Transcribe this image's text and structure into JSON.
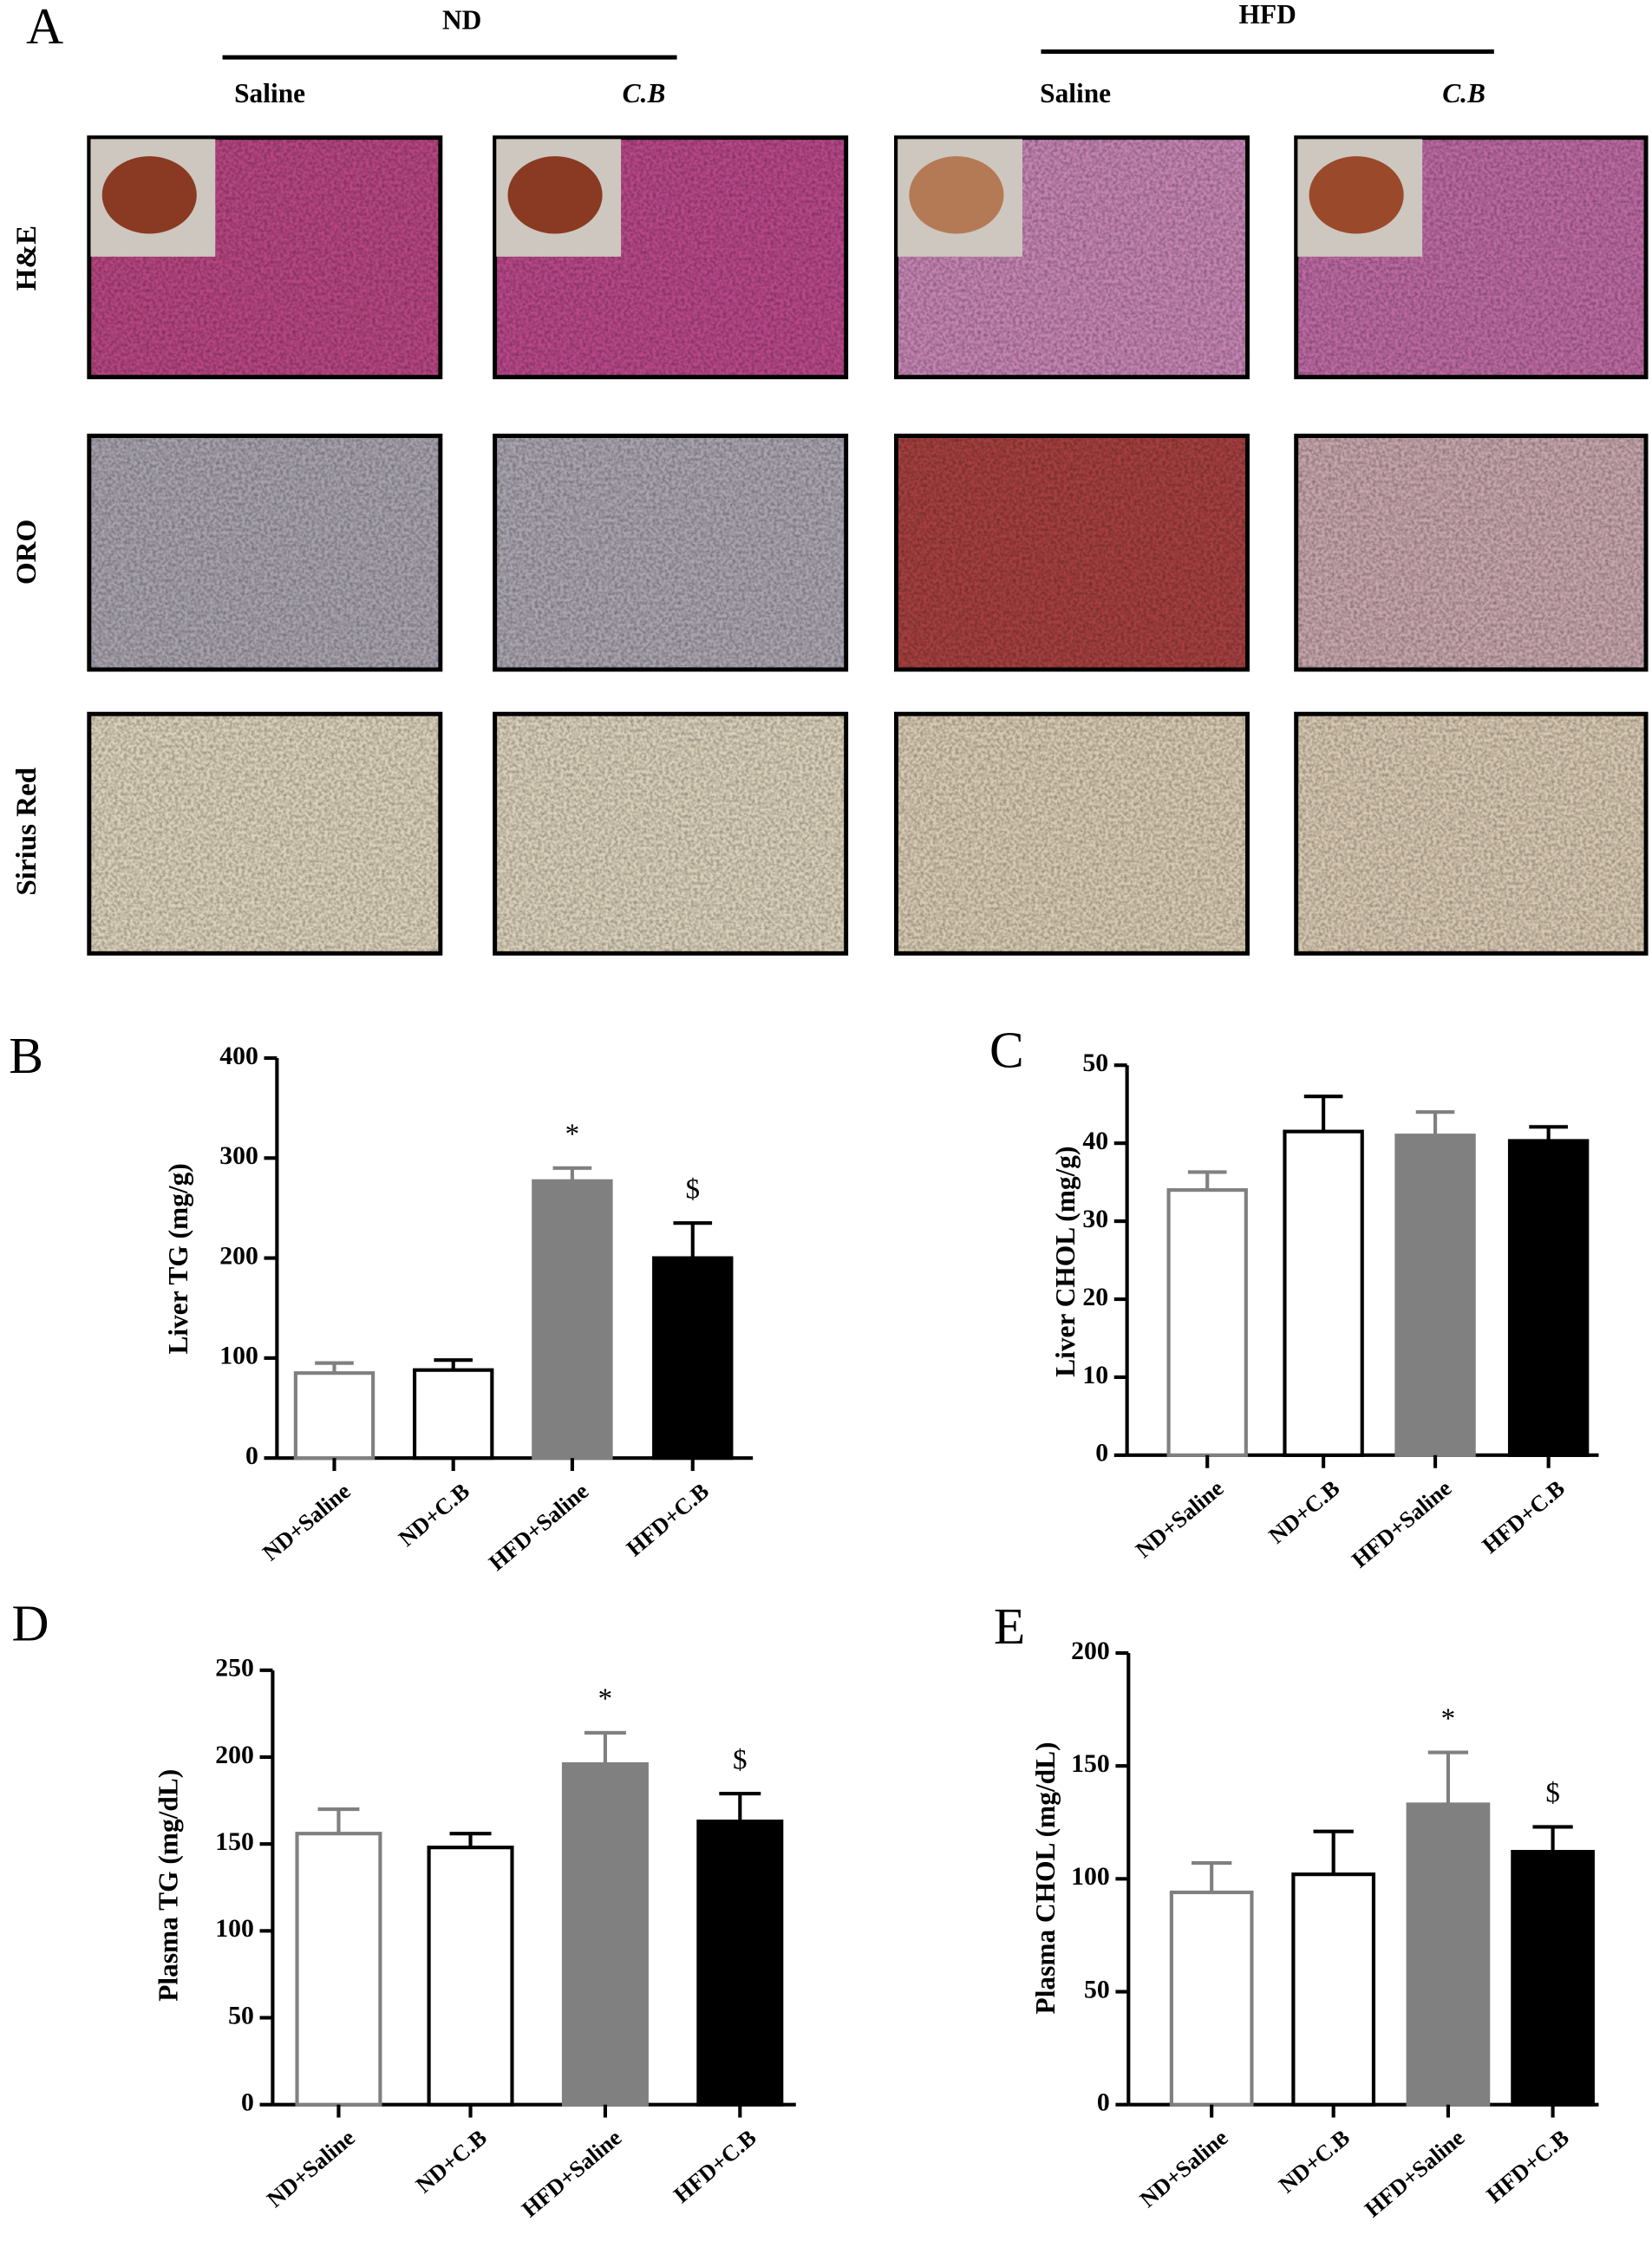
{
  "panel_a": {
    "panel_label": "A",
    "groups": [
      {
        "name": "ND",
        "conditions": [
          "Saline",
          "C.B"
        ]
      },
      {
        "name": "HFD",
        "conditions": [
          "Saline",
          "C.B"
        ]
      }
    ],
    "stains": [
      "H&E",
      "ORO",
      "Sirius Red"
    ]
  },
  "chart_data": [
    {
      "type": "bar",
      "panel_label": "B",
      "y_label": "Liver TG (mg/g)",
      "categories": [
        "ND+Saline",
        "ND+C.B",
        "HFD+Saline",
        "HFD+C.B"
      ],
      "values": [
        85,
        88,
        277,
        200
      ],
      "errors": [
        10,
        10,
        13,
        35
      ],
      "colors": [
        "#ffffff",
        "#ffffff",
        "#808080",
        "#000000"
      ],
      "edge_colors": [
        "#808080",
        "#000000",
        "#808080",
        "#000000"
      ],
      "ylim": [
        0,
        400
      ],
      "yticks": [
        0,
        100,
        200,
        300,
        400
      ],
      "significance": [
        null,
        null,
        "*",
        "$"
      ]
    },
    {
      "type": "bar",
      "panel_label": "C",
      "y_label": "Liver CHOL (mg/g)",
      "categories": [
        "ND+Saline",
        "ND+C.B",
        "HFD+Saline",
        "HFD+C.B"
      ],
      "values": [
        34,
        41.5,
        41,
        40.3
      ],
      "errors": [
        2.3,
        4.5,
        3,
        1.8
      ],
      "colors": [
        "#ffffff",
        "#ffffff",
        "#808080",
        "#000000"
      ],
      "edge_colors": [
        "#808080",
        "#000000",
        "#808080",
        "#000000"
      ],
      "ylim": [
        0,
        50
      ],
      "yticks": [
        0,
        10,
        20,
        30,
        40,
        50
      ]
    },
    {
      "type": "bar",
      "panel_label": "D",
      "y_label": "Plasma TG (mg/dL)",
      "categories": [
        "ND+Saline",
        "ND+C.B",
        "HFD+Saline",
        "HFD+C.B"
      ],
      "values": [
        156,
        148,
        196,
        163
      ],
      "errors": [
        14,
        8,
        18,
        16
      ],
      "colors": [
        "#ffffff",
        "#ffffff",
        "#808080",
        "#000000"
      ],
      "edge_colors": [
        "#808080",
        "#000000",
        "#808080",
        "#000000"
      ],
      "ylim": [
        0,
        250
      ],
      "yticks": [
        0,
        50,
        100,
        150,
        200,
        250
      ],
      "significance": [
        null,
        null,
        "*",
        "$"
      ]
    },
    {
      "type": "bar",
      "panel_label": "E",
      "y_label": "Plasma CHOL (mg/dL)",
      "categories": [
        "ND+Saline",
        "ND+C.B",
        "HFD+Saline",
        "HFD+C.B"
      ],
      "values": [
        94,
        102,
        133,
        112
      ],
      "errors": [
        13,
        19,
        23,
        11
      ],
      "colors": [
        "#ffffff",
        "#ffffff",
        "#808080",
        "#000000"
      ],
      "edge_colors": [
        "#808080",
        "#000000",
        "#808080",
        "#000000"
      ],
      "ylim": [
        0,
        200
      ],
      "yticks": [
        0,
        50,
        100,
        150,
        200
      ],
      "significance": [
        null,
        null,
        "*",
        "$"
      ]
    }
  ]
}
